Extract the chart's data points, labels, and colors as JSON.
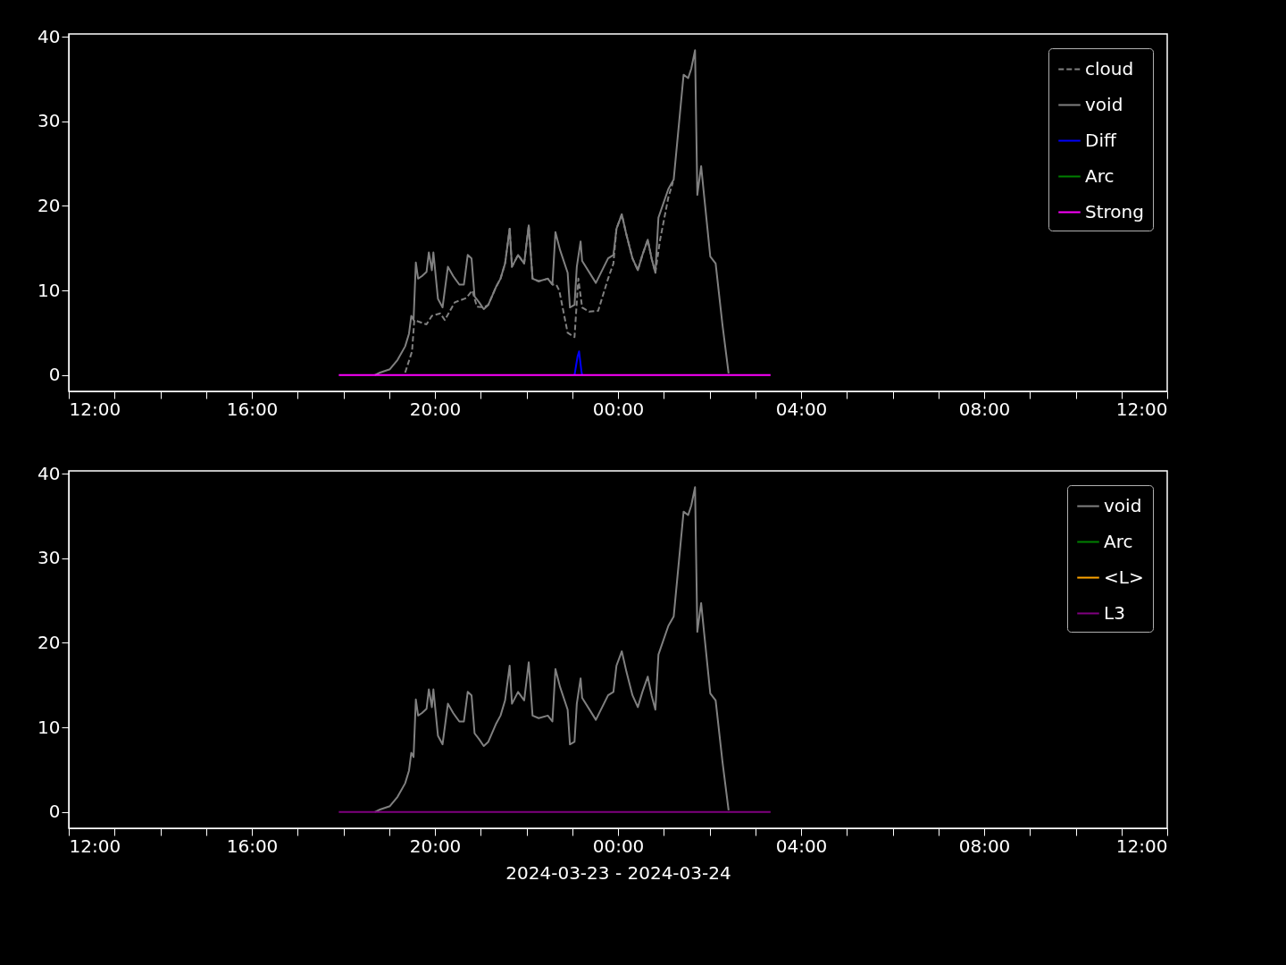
{
  "chart_data": [
    {
      "type": "line",
      "xlim": [
        "2024-03-23T12:00",
        "2024-03-24T12:00"
      ],
      "xticks": [
        {
          "value": "2024-03-23T12:00",
          "label": "12:00"
        },
        {
          "value": "2024-03-23T13:00",
          "label": null
        },
        {
          "value": "2024-03-23T14:00",
          "label": null
        },
        {
          "value": "2024-03-23T15:00",
          "label": null
        },
        {
          "value": "2024-03-23T16:00",
          "label": "16:00"
        },
        {
          "value": "2024-03-23T17:00",
          "label": null
        },
        {
          "value": "2024-03-23T18:00",
          "label": null
        },
        {
          "value": "2024-03-23T19:00",
          "label": null
        },
        {
          "value": "2024-03-23T20:00",
          "label": "20:00"
        },
        {
          "value": "2024-03-23T21:00",
          "label": null
        },
        {
          "value": "2024-03-23T22:00",
          "label": null
        },
        {
          "value": "2024-03-23T23:00",
          "label": null
        },
        {
          "value": "2024-03-24T00:00",
          "label": "00:00"
        },
        {
          "value": "2024-03-24T01:00",
          "label": null
        },
        {
          "value": "2024-03-24T02:00",
          "label": null
        },
        {
          "value": "2024-03-24T03:00",
          "label": null
        },
        {
          "value": "2024-03-24T04:00",
          "label": "04:00"
        },
        {
          "value": "2024-03-24T05:00",
          "label": null
        },
        {
          "value": "2024-03-24T06:00",
          "label": null
        },
        {
          "value": "2024-03-24T07:00",
          "label": null
        },
        {
          "value": "2024-03-24T08:00",
          "label": "08:00"
        },
        {
          "value": "2024-03-24T09:00",
          "label": null
        },
        {
          "value": "2024-03-24T10:00",
          "label": null
        },
        {
          "value": "2024-03-24T11:00",
          "label": null
        },
        {
          "value": "2024-03-24T12:00",
          "label": "12:00"
        }
      ],
      "ylim": [
        -1.92,
        40.32
      ],
      "yticks": [
        0,
        10,
        20,
        30,
        40
      ],
      "legend": "top right",
      "series": [
        {
          "name": "cloud",
          "color": "#808080",
          "line_style": "dashed",
          "x": [
            "2024-03-23T19:21",
            "2024-03-23T19:30",
            "2024-03-23T19:33",
            "2024-03-23T19:49",
            "2024-03-23T19:56",
            "2024-03-23T20:07",
            "2024-03-23T20:13",
            "2024-03-23T20:26",
            "2024-03-23T20:41",
            "2024-03-23T20:49",
            "2024-03-23T20:55",
            "2024-03-23T21:04",
            "2024-03-23T21:10",
            "2024-03-23T21:20",
            "2024-03-23T21:26",
            "2024-03-23T21:32",
            "2024-03-23T21:38",
            "2024-03-23T21:41",
            "2024-03-23T21:49",
            "2024-03-23T21:57",
            "2024-03-23T22:03",
            "2024-03-23T22:08",
            "2024-03-23T22:16",
            "2024-03-23T22:28",
            "2024-03-23T22:34",
            "2024-03-23T22:39",
            "2024-03-23T22:43",
            "2024-03-23T22:54",
            "2024-03-23T23:03",
            "2024-03-23T23:08",
            "2024-03-23T23:13",
            "2024-03-23T23:22",
            "2024-03-23T23:34",
            "2024-03-23T23:47",
            "2024-03-23T23:54",
            "2024-03-23T23:58",
            "2024-03-24T00:05",
            "2024-03-24T00:11",
            "2024-03-24T00:19",
            "2024-03-24T00:26",
            "2024-03-24T00:32",
            "2024-03-24T00:39",
            "2024-03-24T00:44",
            "2024-03-24T00:49",
            "2024-03-24T00:55",
            "2024-03-24T01:06",
            "2024-03-24T01:12"
          ],
          "values": [
            0.3,
            2.8,
            6.5,
            6.0,
            7.0,
            7.3,
            6.5,
            8.6,
            9.1,
            10.0,
            8.1,
            8.0,
            8.3,
            10.4,
            11.4,
            13.2,
            17.3,
            12.8,
            14.2,
            13.2,
            17.7,
            11.4,
            11.1,
            11.4,
            10.7,
            10.7,
            10.0,
            5.0,
            4.5,
            11.4,
            8.0,
            7.5,
            7.6,
            11.4,
            13.2,
            17.3,
            19.0,
            16.6,
            13.8,
            12.4,
            14.2,
            16.0,
            13.8,
            12.1,
            15.9,
            21.0,
            22.8
          ]
        },
        {
          "name": "void",
          "color": "#808080",
          "x": [
            "2024-03-23T18:41",
            "2024-03-23T18:48",
            "2024-03-23T19:01",
            "2024-03-23T19:11",
            "2024-03-23T19:21",
            "2024-03-23T19:26",
            "2024-03-23T19:29",
            "2024-03-23T19:32",
            "2024-03-23T19:35",
            "2024-03-23T19:38",
            "2024-03-23T19:43",
            "2024-03-23T19:49",
            "2024-03-23T19:52",
            "2024-03-23T19:56",
            "2024-03-23T19:58",
            "2024-03-23T20:04",
            "2024-03-23T20:10",
            "2024-03-23T20:17",
            "2024-03-23T20:24",
            "2024-03-23T20:32",
            "2024-03-23T20:38",
            "2024-03-23T20:43",
            "2024-03-23T20:48",
            "2024-03-23T20:52",
            "2024-03-23T20:58",
            "2024-03-23T21:04",
            "2024-03-23T21:10",
            "2024-03-23T21:20",
            "2024-03-23T21:26",
            "2024-03-23T21:32",
            "2024-03-23T21:38",
            "2024-03-23T21:41",
            "2024-03-23T21:49",
            "2024-03-23T21:57",
            "2024-03-23T22:03",
            "2024-03-23T22:08",
            "2024-03-23T22:16",
            "2024-03-23T22:28",
            "2024-03-23T22:34",
            "2024-03-23T22:38",
            "2024-03-23T22:44",
            "2024-03-23T22:54",
            "2024-03-23T22:57",
            "2024-03-23T23:03",
            "2024-03-23T23:06",
            "2024-03-23T23:11",
            "2024-03-23T23:13",
            "2024-03-23T23:31",
            "2024-03-23T23:47",
            "2024-03-23T23:54",
            "2024-03-23T23:58",
            "2024-03-24T00:05",
            "2024-03-24T00:11",
            "2024-03-24T00:19",
            "2024-03-24T00:26",
            "2024-03-24T00:32",
            "2024-03-24T00:39",
            "2024-03-24T00:44",
            "2024-03-24T00:49",
            "2024-03-24T00:53",
            "2024-03-24T01:06",
            "2024-03-24T01:13",
            "2024-03-24T01:26",
            "2024-03-24T01:32",
            "2024-03-24T01:36",
            "2024-03-24T01:41",
            "2024-03-24T01:44",
            "2024-03-24T01:49",
            "2024-03-24T01:53",
            "2024-03-24T02:01",
            "2024-03-24T02:08",
            "2024-03-24T02:17",
            "2024-03-24T02:25"
          ],
          "values": [
            0,
            0.3,
            0.7,
            1.8,
            3.4,
            4.9,
            7.0,
            6.5,
            13.3,
            11.4,
            11.7,
            12.2,
            14.5,
            12.4,
            14.5,
            9.0,
            8.0,
            12.8,
            11.7,
            10.7,
            10.7,
            14.2,
            13.8,
            9.3,
            8.6,
            7.8,
            8.3,
            10.4,
            11.4,
            13.2,
            17.3,
            12.8,
            14.2,
            13.2,
            17.7,
            11.4,
            11.1,
            11.4,
            10.7,
            16.9,
            14.8,
            12.1,
            8.0,
            8.3,
            12.8,
            15.8,
            13.5,
            10.9,
            13.8,
            14.2,
            17.3,
            19.0,
            16.6,
            13.8,
            12.4,
            14.2,
            16.0,
            13.8,
            12.1,
            18.6,
            22.0,
            23.1,
            35.5,
            35.1,
            36.2,
            38.4,
            21.3,
            24.7,
            21.1,
            14.0,
            13.2,
            5.9,
            0.2
          ]
        },
        {
          "name": "Diff",
          "color": "#0000ff",
          "x": [
            "2024-03-23T23:03",
            "2024-03-23T23:07",
            "2024-03-23T23:09",
            "2024-03-23T23:12",
            "2024-03-23T23:13"
          ],
          "values": [
            0,
            2.2,
            2.8,
            0.5,
            0
          ]
        },
        {
          "name": "Arc",
          "color": "#008000"
        },
        {
          "name": "Strong",
          "color": "#ff00ff",
          "x": [
            "2024-03-23T17:54",
            "2024-03-24T03:20"
          ],
          "values": [
            0,
            0
          ]
        }
      ]
    },
    {
      "type": "line",
      "xlabel": "2024-03-23 - 2024-03-24",
      "xlim": [
        "2024-03-23T12:00",
        "2024-03-24T12:00"
      ],
      "xticks": [
        {
          "value": "2024-03-23T12:00",
          "label": "12:00"
        },
        {
          "value": "2024-03-23T13:00",
          "label": null
        },
        {
          "value": "2024-03-23T14:00",
          "label": null
        },
        {
          "value": "2024-03-23T15:00",
          "label": null
        },
        {
          "value": "2024-03-23T16:00",
          "label": "16:00"
        },
        {
          "value": "2024-03-23T17:00",
          "label": null
        },
        {
          "value": "2024-03-23T18:00",
          "label": null
        },
        {
          "value": "2024-03-23T19:00",
          "label": null
        },
        {
          "value": "2024-03-23T20:00",
          "label": "20:00"
        },
        {
          "value": "2024-03-23T21:00",
          "label": null
        },
        {
          "value": "2024-03-23T22:00",
          "label": null
        },
        {
          "value": "2024-03-23T23:00",
          "label": null
        },
        {
          "value": "2024-03-24T00:00",
          "label": "00:00"
        },
        {
          "value": "2024-03-24T01:00",
          "label": null
        },
        {
          "value": "2024-03-24T02:00",
          "label": null
        },
        {
          "value": "2024-03-24T03:00",
          "label": null
        },
        {
          "value": "2024-03-24T04:00",
          "label": "04:00"
        },
        {
          "value": "2024-03-24T05:00",
          "label": null
        },
        {
          "value": "2024-03-24T06:00",
          "label": null
        },
        {
          "value": "2024-03-24T07:00",
          "label": null
        },
        {
          "value": "2024-03-24T08:00",
          "label": "08:00"
        },
        {
          "value": "2024-03-24T09:00",
          "label": null
        },
        {
          "value": "2024-03-24T10:00",
          "label": null
        },
        {
          "value": "2024-03-24T11:00",
          "label": null
        },
        {
          "value": "2024-03-24T12:00",
          "label": "12:00"
        }
      ],
      "ylim": [
        -1.92,
        40.32
      ],
      "yticks": [
        0,
        10,
        20,
        30,
        40
      ],
      "legend": "top right",
      "series": [
        {
          "name": "void",
          "color": "#808080",
          "x": [
            "2024-03-23T18:41",
            "2024-03-23T18:48",
            "2024-03-23T19:01",
            "2024-03-23T19:11",
            "2024-03-23T19:21",
            "2024-03-23T19:26",
            "2024-03-23T19:29",
            "2024-03-23T19:32",
            "2024-03-23T19:35",
            "2024-03-23T19:38",
            "2024-03-23T19:43",
            "2024-03-23T19:49",
            "2024-03-23T19:52",
            "2024-03-23T19:56",
            "2024-03-23T19:58",
            "2024-03-23T20:04",
            "2024-03-23T20:10",
            "2024-03-23T20:17",
            "2024-03-23T20:24",
            "2024-03-23T20:32",
            "2024-03-23T20:38",
            "2024-03-23T20:43",
            "2024-03-23T20:48",
            "2024-03-23T20:52",
            "2024-03-23T20:58",
            "2024-03-23T21:04",
            "2024-03-23T21:10",
            "2024-03-23T21:20",
            "2024-03-23T21:26",
            "2024-03-23T21:32",
            "2024-03-23T21:38",
            "2024-03-23T21:41",
            "2024-03-23T21:49",
            "2024-03-23T21:57",
            "2024-03-23T22:03",
            "2024-03-23T22:08",
            "2024-03-23T22:16",
            "2024-03-23T22:28",
            "2024-03-23T22:34",
            "2024-03-23T22:38",
            "2024-03-23T22:44",
            "2024-03-23T22:54",
            "2024-03-23T22:57",
            "2024-03-23T23:03",
            "2024-03-23T23:06",
            "2024-03-23T23:11",
            "2024-03-23T23:13",
            "2024-03-23T23:31",
            "2024-03-23T23:47",
            "2024-03-23T23:54",
            "2024-03-23T23:58",
            "2024-03-24T00:05",
            "2024-03-24T00:11",
            "2024-03-24T00:19",
            "2024-03-24T00:26",
            "2024-03-24T00:32",
            "2024-03-24T00:39",
            "2024-03-24T00:44",
            "2024-03-24T00:49",
            "2024-03-24T00:53",
            "2024-03-24T01:06",
            "2024-03-24T01:13",
            "2024-03-24T01:26",
            "2024-03-24T01:32",
            "2024-03-24T01:36",
            "2024-03-24T01:41",
            "2024-03-24T01:44",
            "2024-03-24T01:49",
            "2024-03-24T01:53",
            "2024-03-24T02:01",
            "2024-03-24T02:08",
            "2024-03-24T02:17",
            "2024-03-24T02:25"
          ],
          "values": [
            0,
            0.3,
            0.7,
            1.8,
            3.4,
            4.9,
            7.0,
            6.5,
            13.3,
            11.4,
            11.7,
            12.2,
            14.5,
            12.4,
            14.5,
            9.0,
            8.0,
            12.8,
            11.7,
            10.7,
            10.7,
            14.2,
            13.8,
            9.3,
            8.6,
            7.8,
            8.3,
            10.4,
            11.4,
            13.2,
            17.3,
            12.8,
            14.2,
            13.2,
            17.7,
            11.4,
            11.1,
            11.4,
            10.7,
            16.9,
            14.8,
            12.1,
            8.0,
            8.3,
            12.8,
            15.8,
            13.5,
            10.9,
            13.8,
            14.2,
            17.3,
            19.0,
            16.6,
            13.8,
            12.4,
            14.2,
            16.0,
            13.8,
            12.1,
            18.6,
            22.0,
            23.1,
            35.5,
            35.1,
            36.2,
            38.4,
            21.3,
            24.7,
            21.1,
            14.0,
            13.2,
            5.9,
            0.2
          ]
        },
        {
          "name": "Arc",
          "color": "#008000"
        },
        {
          "name": "<L>",
          "color": "#ffa500"
        },
        {
          "name": "L3",
          "color": "#800080",
          "x": [
            "2024-03-23T17:54",
            "2024-03-24T03:20"
          ],
          "values": [
            0,
            0
          ]
        }
      ]
    }
  ]
}
